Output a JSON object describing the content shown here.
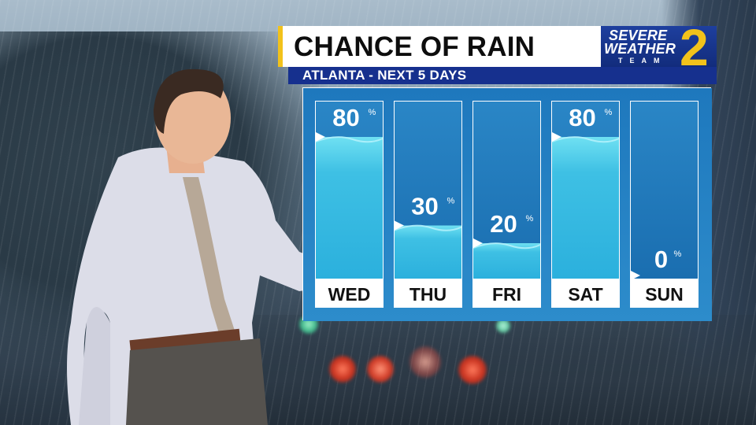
{
  "header": {
    "title": "CHANCE OF RAIN",
    "subtitle": "ATLANTA - NEXT 5 DAYS"
  },
  "logo": {
    "line1": "SEVERE",
    "line2": "WEATHER",
    "line3": "TEAM",
    "channel": "2"
  },
  "colors": {
    "accent_yellow": "#f2c21b",
    "brand_blue": "#16308e",
    "column_blue": "#1f7cc0",
    "water": "#49c6e4"
  },
  "chart_data": {
    "type": "bar",
    "title": "CHANCE OF RAIN",
    "categories": [
      "WED",
      "THU",
      "FRI",
      "SAT",
      "SUN"
    ],
    "values": [
      80,
      30,
      20,
      80,
      0
    ],
    "value_suffix": "%",
    "ylim": [
      0,
      100
    ],
    "grid": false
  }
}
